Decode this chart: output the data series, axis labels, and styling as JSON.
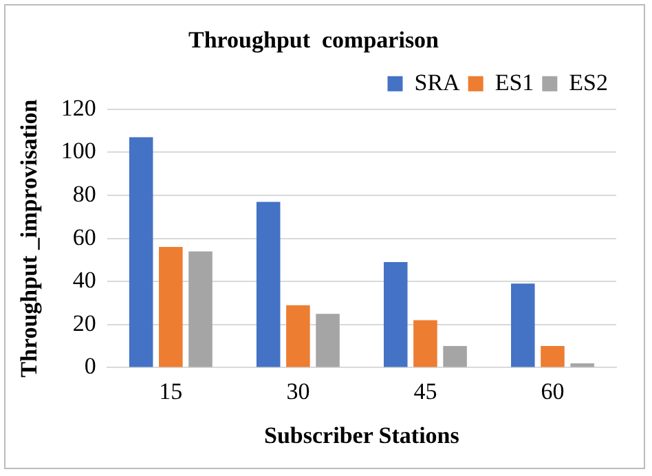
{
  "chart_data": {
    "type": "bar",
    "title": "Throughput  comparison",
    "xlabel": "Subscriber Stations",
    "ylabel": "Throughput _improvisation",
    "categories": [
      "15",
      "30",
      "45",
      "60"
    ],
    "series": [
      {
        "name": "SRA",
        "color": "#4472c4",
        "values": [
          107,
          77,
          49,
          39
        ]
      },
      {
        "name": "ES1",
        "color": "#ed7d31",
        "values": [
          56,
          29,
          22,
          10
        ]
      },
      {
        "name": "ES2",
        "color": "#a5a5a5",
        "values": [
          54,
          25,
          10,
          2
        ]
      }
    ],
    "ylim": [
      0,
      120
    ],
    "yticks": [
      0,
      20,
      40,
      60,
      80,
      100,
      120
    ],
    "grid": "y",
    "legend": "top right"
  }
}
